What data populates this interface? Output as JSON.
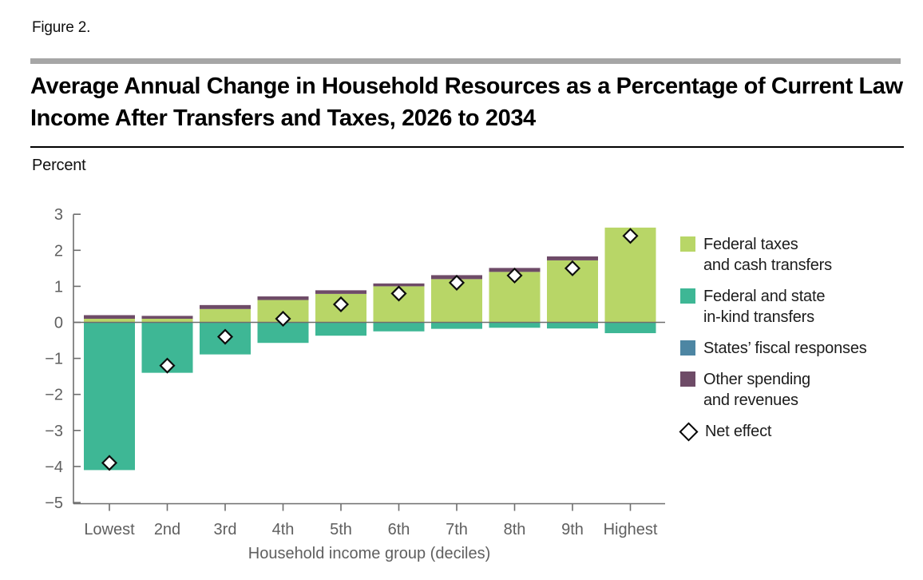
{
  "figure_label": "Figure 2.",
  "chart_data": {
    "type": "bar",
    "stacked": true,
    "title": "Average Annual Change in Household Resources as a Percentage of Current Law Income After Transfers and Taxes, 2026 to 2034",
    "ylabel": "Percent",
    "xlabel": "Household income group (deciles)",
    "ylim": [
      -5,
      3
    ],
    "yticks": [
      3,
      2,
      1,
      0,
      -1,
      -2,
      -3,
      -4,
      -5
    ],
    "grid": false,
    "legend_position": "right",
    "categories": [
      "Lowest",
      "2nd",
      "3rd",
      "4th",
      "5th",
      "6th",
      "7th",
      "8th",
      "9th",
      "Highest"
    ],
    "series": [
      {
        "name": "Federal taxes and cash transfers",
        "color_key": "federal_taxes_cash_transfers",
        "values": [
          0.1,
          0.1,
          0.37,
          0.62,
          0.79,
          1.0,
          1.2,
          1.4,
          1.72,
          2.63
        ]
      },
      {
        "name": "Federal and state in-kind transfers",
        "color_key": "in_kind_transfers",
        "values": [
          -4.1,
          -1.4,
          -0.89,
          -0.57,
          -0.37,
          -0.25,
          -0.18,
          -0.15,
          -0.17,
          -0.3
        ]
      },
      {
        "name": "States' fiscal responses",
        "color_key": "states_fiscal_responses",
        "values": [
          0,
          0,
          0,
          0,
          0,
          0,
          0,
          0,
          0,
          0
        ]
      },
      {
        "name": "Other spending and revenues",
        "color_key": "other_spending_revenues",
        "values": [
          0.1,
          0.08,
          0.11,
          0.1,
          0.1,
          0.08,
          0.11,
          0.11,
          0.11,
          0.0
        ]
      }
    ],
    "net_effect": {
      "name": "Net effect",
      "values": [
        -3.9,
        -1.2,
        -0.4,
        0.1,
        0.5,
        0.8,
        1.1,
        1.3,
        1.5,
        2.4
      ]
    }
  },
  "colors": {
    "federal_taxes_cash_transfers": "#b8d667",
    "in_kind_transfers": "#3eb795",
    "states_fiscal_responses": "#4d86a3",
    "other_spending_revenues": "#6e4b67",
    "net_marker_fill": "#ffffff",
    "net_marker_stroke": "#0d0d0d",
    "axis": "#6e6e6e",
    "tick_text": "#5f5f5f",
    "header_rule_gray": "#a6a6a6",
    "header_rule_black": "#000000"
  },
  "legend": {
    "items": [
      {
        "line1": "Federal taxes",
        "line2": "and cash transfers"
      },
      {
        "line1": "Federal and state",
        "line2": "in-kind transfers"
      },
      {
        "line1": "States’ fiscal responses"
      },
      {
        "line1": "Other spending",
        "line2": "and revenues"
      },
      {
        "line1": "Net effect"
      }
    ]
  }
}
